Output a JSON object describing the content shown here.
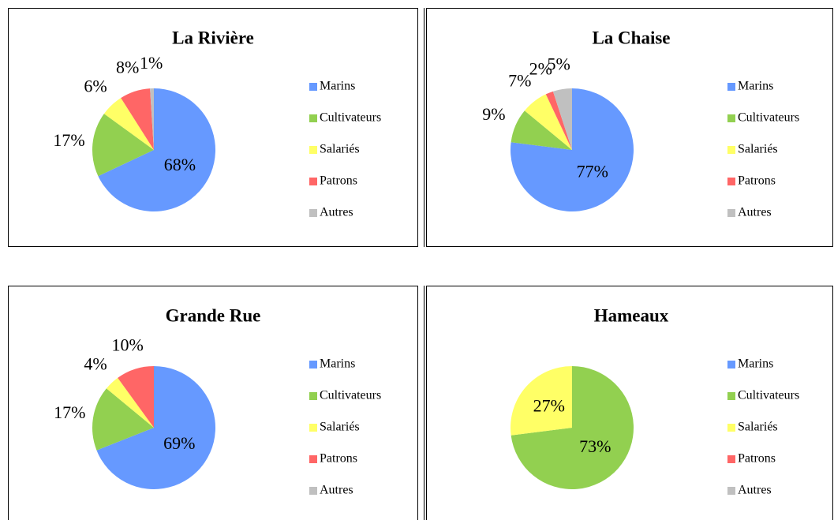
{
  "chart_data": [
    {
      "type": "pie",
      "title": "La Rivière",
      "categories": [
        "Marins",
        "Cultivateurs",
        "Salariés",
        "Patrons",
        "Autres"
      ],
      "values": [
        68,
        17,
        6,
        8,
        1
      ],
      "value_labels": [
        "68%",
        "17%",
        "6%",
        "8%",
        "1%"
      ],
      "colors": [
        "#6699ff",
        "#92d050",
        "#ffff66",
        "#ff6666",
        "#c0c0c0"
      ]
    },
    {
      "type": "pie",
      "title": "La Chaise",
      "categories": [
        "Marins",
        "Cultivateurs",
        "Salariés",
        "Patrons",
        "Autres"
      ],
      "values": [
        77,
        9,
        7,
        2,
        5
      ],
      "value_labels": [
        "77%",
        "9%",
        "7%",
        "2%",
        "5%"
      ],
      "colors": [
        "#6699ff",
        "#92d050",
        "#ffff66",
        "#ff6666",
        "#c0c0c0"
      ]
    },
    {
      "type": "pie",
      "title": "Grande Rue",
      "categories": [
        "Marins",
        "Cultivateurs",
        "Salariés",
        "Patrons",
        "Autres"
      ],
      "values": [
        69,
        17,
        4,
        10,
        0
      ],
      "value_labels": [
        "69%",
        "17%",
        "4%",
        "10%",
        null
      ],
      "colors": [
        "#6699ff",
        "#92d050",
        "#ffff66",
        "#ff6666",
        "#c0c0c0"
      ]
    },
    {
      "type": "pie",
      "title": "Hameaux",
      "categories": [
        "Marins",
        "Cultivateurs",
        "Salariés",
        "Patrons",
        "Autres"
      ],
      "values": [
        0,
        73,
        27,
        0,
        0
      ],
      "value_labels": [
        null,
        "73%",
        "27%",
        null,
        null
      ],
      "colors": [
        "#6699ff",
        "#92d050",
        "#ffff66",
        "#ff6666",
        "#c0c0c0"
      ]
    }
  ]
}
